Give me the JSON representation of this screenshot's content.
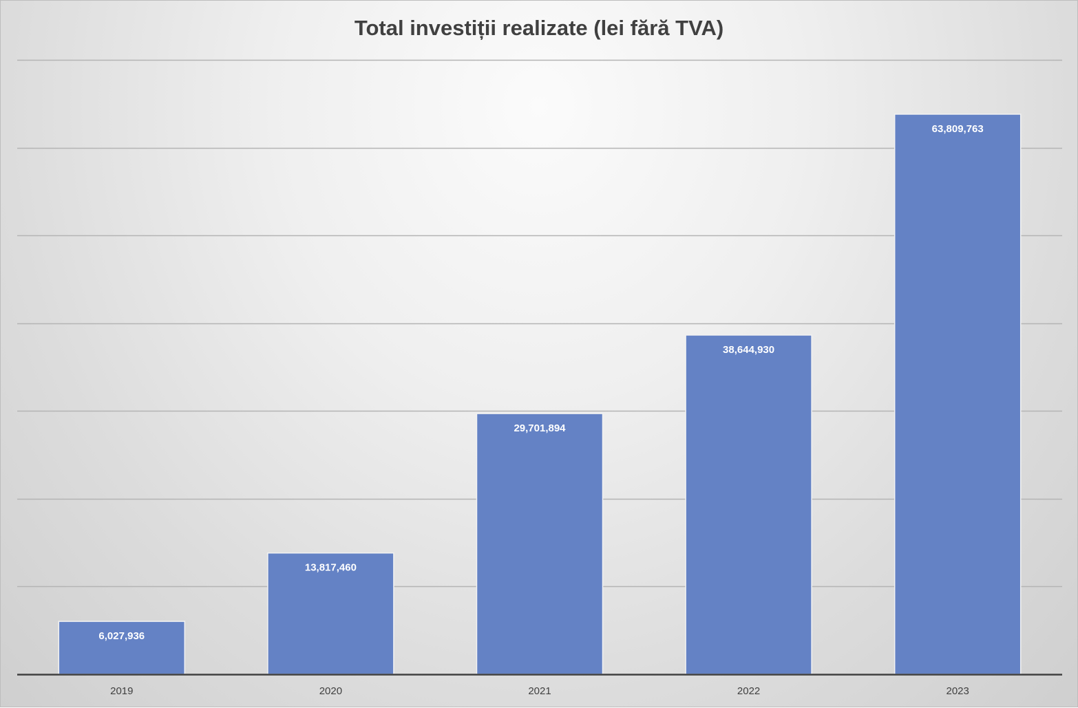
{
  "chart_data": {
    "type": "bar",
    "title": "Total investiții realizate (lei fără TVA)",
    "categories": [
      "2019",
      "2020",
      "2021",
      "2022",
      "2023"
    ],
    "values": [
      6027936,
      13817460,
      29701894,
      38644930,
      63809763
    ],
    "data_labels": [
      "6,027,936",
      "13,817,460",
      "29,701,894",
      "38,644,930",
      "63,809,763"
    ],
    "xlabel": "",
    "ylabel": "",
    "ylim": [
      0,
      70000000
    ],
    "y_gridline_step": 10000000,
    "y_tick_labels_visible": false,
    "grid": true,
    "legend": "none",
    "colors": {
      "bar": "#6482c5",
      "bar_border": "#f2f2f2",
      "gridline": "#b4b4b4",
      "axis": "#404040"
    }
  }
}
